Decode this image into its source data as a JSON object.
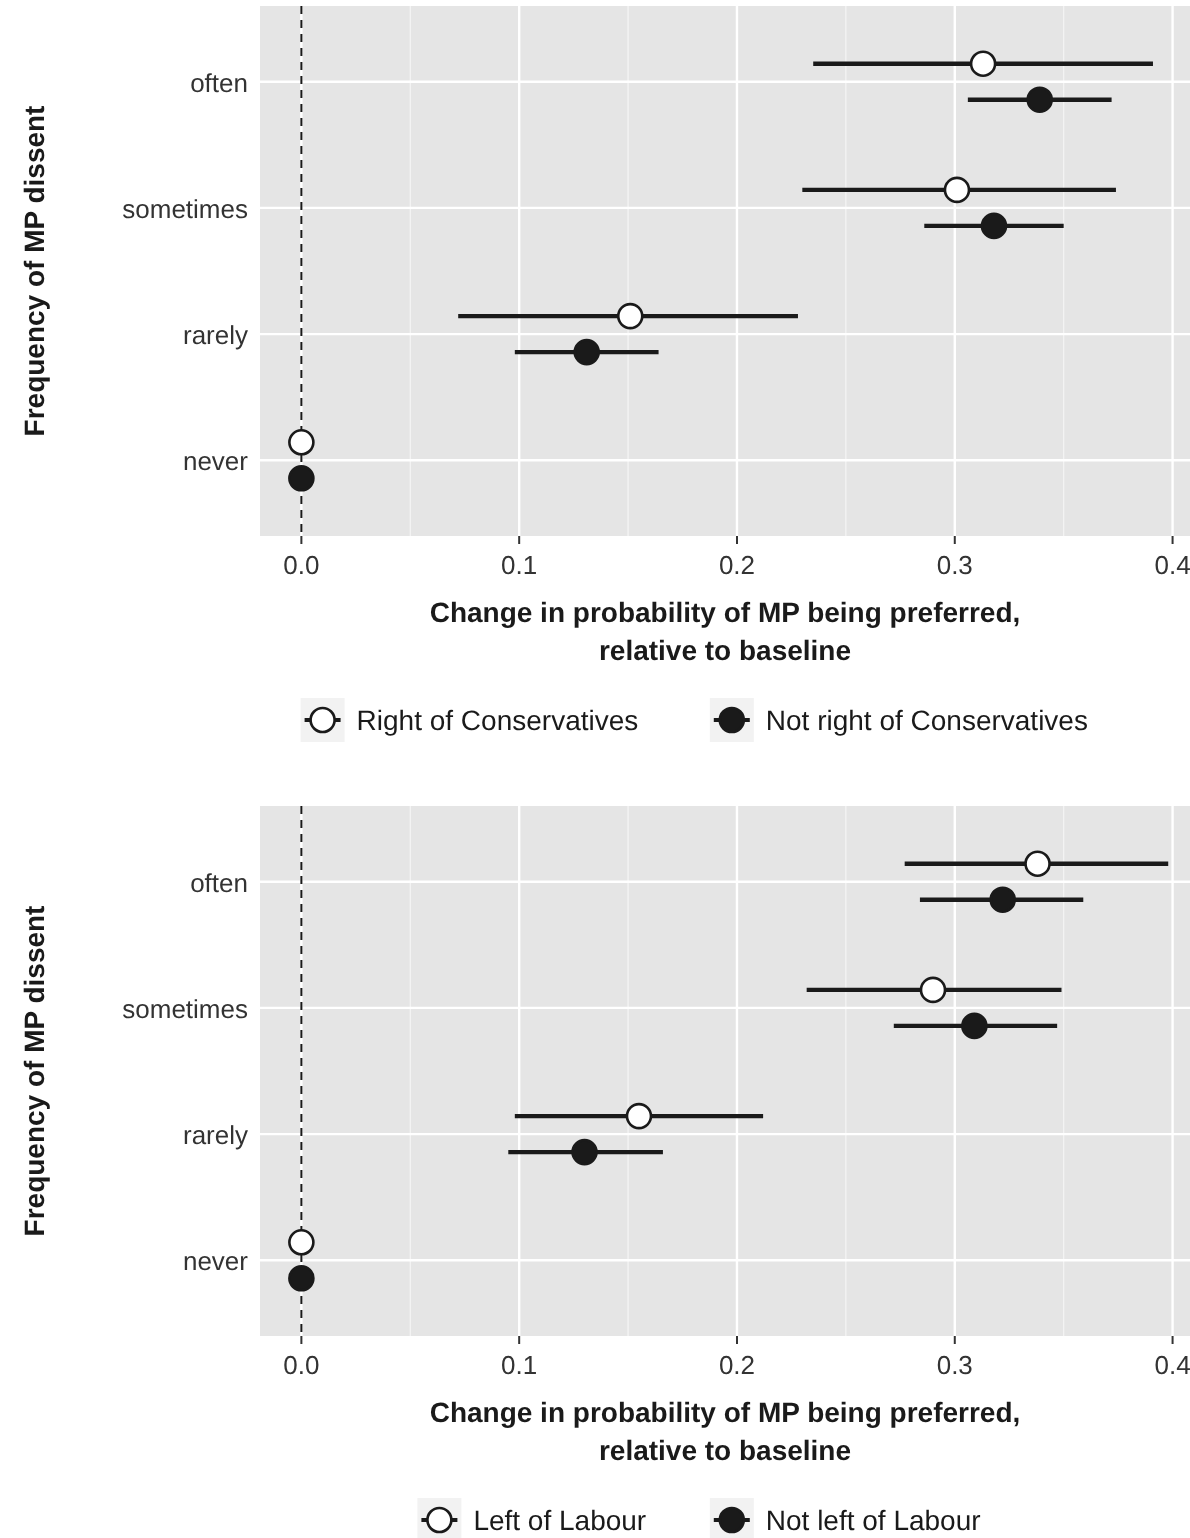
{
  "chart_data": [
    {
      "type": "scatter",
      "orientation": "horizontal",
      "ylabel": "Frequency of MP dissent",
      "xlabel": "Change in probability of MP being preferred,\nrelative to baseline",
      "categories": [
        "often",
        "sometimes",
        "rarely",
        "never"
      ],
      "xlim": [
        -0.019,
        0.408
      ],
      "xticks": [
        {
          "value": 0,
          "label": "0.0"
        },
        0.1,
        0.2,
        0.3,
        0.4
      ],
      "grid": true,
      "legend": "bottom",
      "marker": "circle",
      "ref_lines": [
        {
          "axis": "x",
          "value": 0,
          "line_style": "dashed",
          "color": "#1a1a1a"
        }
      ],
      "series": [
        {
          "name": "Right of Conservatives",
          "color": "#ffffff",
          "values": [
            0.313,
            0.301,
            0.151,
            0
          ],
          "errors": [
            [
              0.235,
              0.391
            ],
            [
              0.23,
              0.374
            ],
            [
              0.072,
              0.228
            ],
            null
          ]
        },
        {
          "name": "Not right of Conservatives",
          "color": "#1a1a1a",
          "values": [
            0.339,
            0.318,
            0.131,
            0
          ],
          "errors": [
            [
              0.306,
              0.372
            ],
            [
              0.286,
              0.35
            ],
            [
              0.098,
              0.164
            ],
            null
          ]
        }
      ]
    },
    {
      "type": "scatter",
      "orientation": "horizontal",
      "ylabel": "Frequency of MP dissent",
      "xlabel": "Change in probability of MP being preferred,\nrelative to baseline",
      "categories": [
        "often",
        "sometimes",
        "rarely",
        "never"
      ],
      "xlim": [
        -0.019,
        0.408
      ],
      "xticks": [
        {
          "value": 0,
          "label": "0.0"
        },
        0.1,
        0.2,
        0.3,
        0.4
      ],
      "grid": true,
      "legend": "bottom",
      "marker": "circle",
      "ref_lines": [
        {
          "axis": "x",
          "value": 0,
          "line_style": "dashed",
          "color": "#1a1a1a"
        }
      ],
      "series": [
        {
          "name": "Left of Labour",
          "color": "#ffffff",
          "values": [
            0.338,
            0.29,
            0.155,
            0
          ],
          "errors": [
            [
              0.277,
              0.398
            ],
            [
              0.232,
              0.349
            ],
            [
              0.098,
              0.212
            ],
            null
          ]
        },
        {
          "name": "Not left of Labour",
          "color": "#1a1a1a",
          "values": [
            0.322,
            0.309,
            0.13,
            0
          ],
          "errors": [
            [
              0.284,
              0.359
            ],
            [
              0.272,
              0.347
            ],
            [
              0.095,
              0.166
            ],
            null
          ]
        }
      ]
    }
  ]
}
